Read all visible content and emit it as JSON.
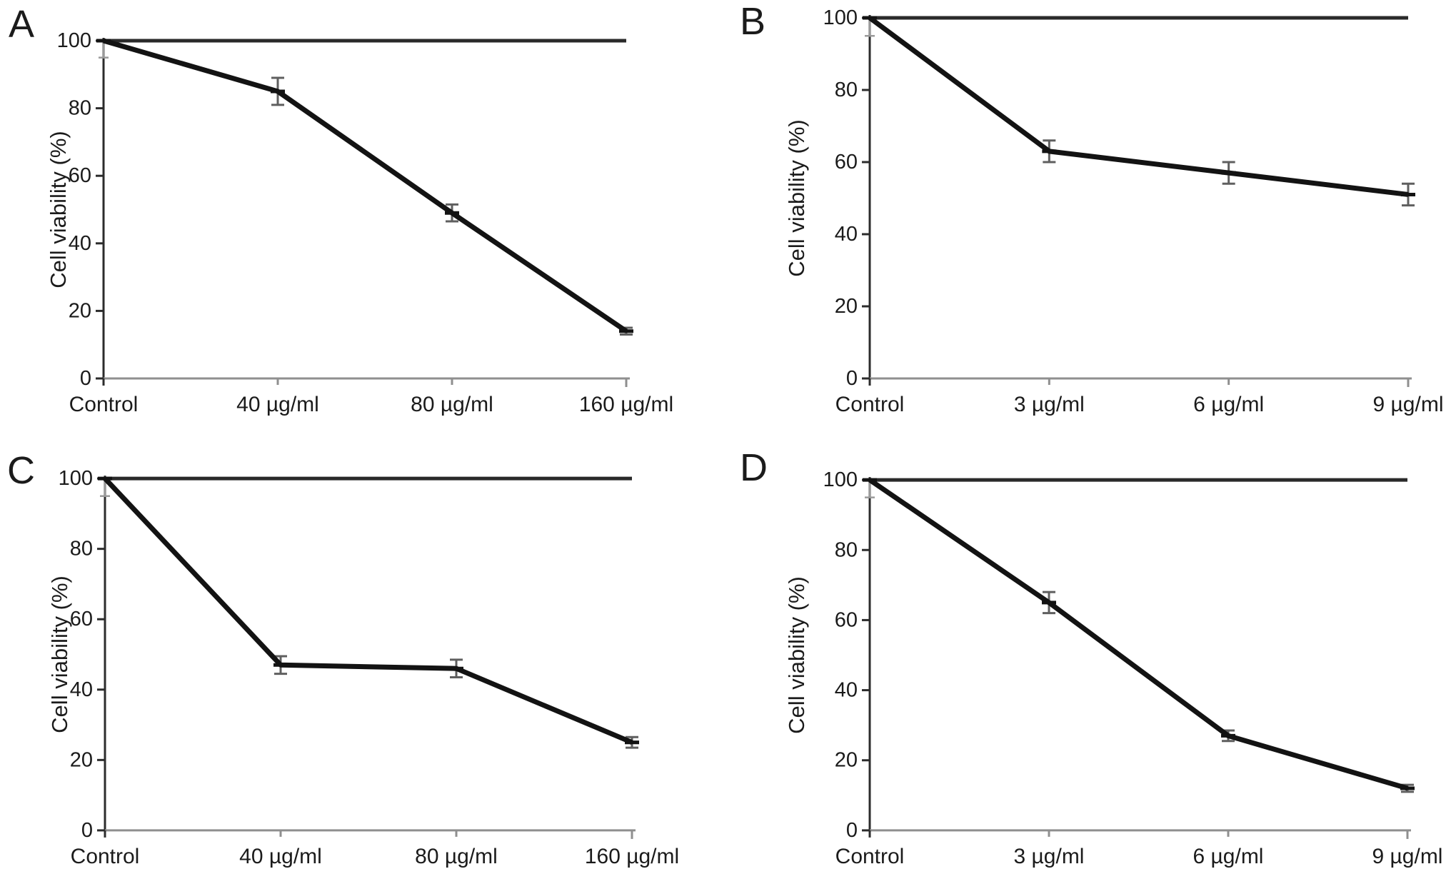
{
  "figure": {
    "background": "#ffffff",
    "colors": {
      "text": "#1b1b1b",
      "series_line": "#131313",
      "reference_line": "#2a2a2a",
      "y_axis": "#2c2c2c",
      "x_axis": "#8f8f8f",
      "error_bar": "#5f5f5f",
      "control_whisker": "#9a9a9a"
    }
  },
  "chart_data": [
    {
      "panel_label": "A",
      "type": "line",
      "title": "",
      "xlabel": "",
      "ylabel": "Cell viability (%)",
      "ylim": [
        0,
        100
      ],
      "yticks": [
        0,
        20,
        40,
        60,
        80,
        100
      ],
      "grid": false,
      "legend": null,
      "categories": [
        "Control",
        "40 µg/ml",
        "80 µg/ml",
        "160 µg/ml"
      ],
      "values": [
        100,
        85,
        49,
        14
      ],
      "errors": [
        0,
        4,
        2.5,
        1
      ],
      "control_lower_error": 5,
      "reference_line_y": 100,
      "marker": "dash"
    },
    {
      "panel_label": "B",
      "type": "line",
      "title": "",
      "xlabel": "",
      "ylabel": "Cell viability (%)",
      "ylim": [
        0,
        100
      ],
      "yticks": [
        0,
        20,
        40,
        60,
        80,
        100
      ],
      "grid": false,
      "legend": null,
      "categories": [
        "Control",
        "3 µg/ml",
        "6 µg/ml",
        "9 µg/ml"
      ],
      "values": [
        100,
        63,
        57,
        51
      ],
      "errors": [
        0,
        3,
        3,
        3
      ],
      "control_lower_error": 5,
      "reference_line_y": 100,
      "marker": "dash"
    },
    {
      "panel_label": "C",
      "type": "line",
      "title": "",
      "xlabel": "",
      "ylabel": "Cell viability (%)",
      "ylim": [
        0,
        100
      ],
      "yticks": [
        0,
        20,
        40,
        60,
        80,
        100
      ],
      "grid": false,
      "legend": null,
      "categories": [
        "Control",
        "40 µg/ml",
        "80 µg/ml",
        "160 µg/ml"
      ],
      "values": [
        100,
        47,
        46,
        25
      ],
      "errors": [
        0,
        2.5,
        2.5,
        1.5
      ],
      "control_lower_error": 5,
      "reference_line_y": 100,
      "marker": "dash"
    },
    {
      "panel_label": "D",
      "type": "line",
      "title": "",
      "xlabel": "",
      "ylabel": "Cell viability (%)",
      "ylim": [
        0,
        100
      ],
      "yticks": [
        0,
        20,
        40,
        60,
        80,
        100
      ],
      "grid": false,
      "legend": null,
      "categories": [
        "Control",
        "3 µg/ml",
        "6 µg/ml",
        "9 µg/ml"
      ],
      "values": [
        100,
        65,
        27,
        12
      ],
      "errors": [
        0,
        3,
        1.5,
        1
      ],
      "control_lower_error": 5,
      "reference_line_y": 100,
      "marker": "dash"
    }
  ]
}
